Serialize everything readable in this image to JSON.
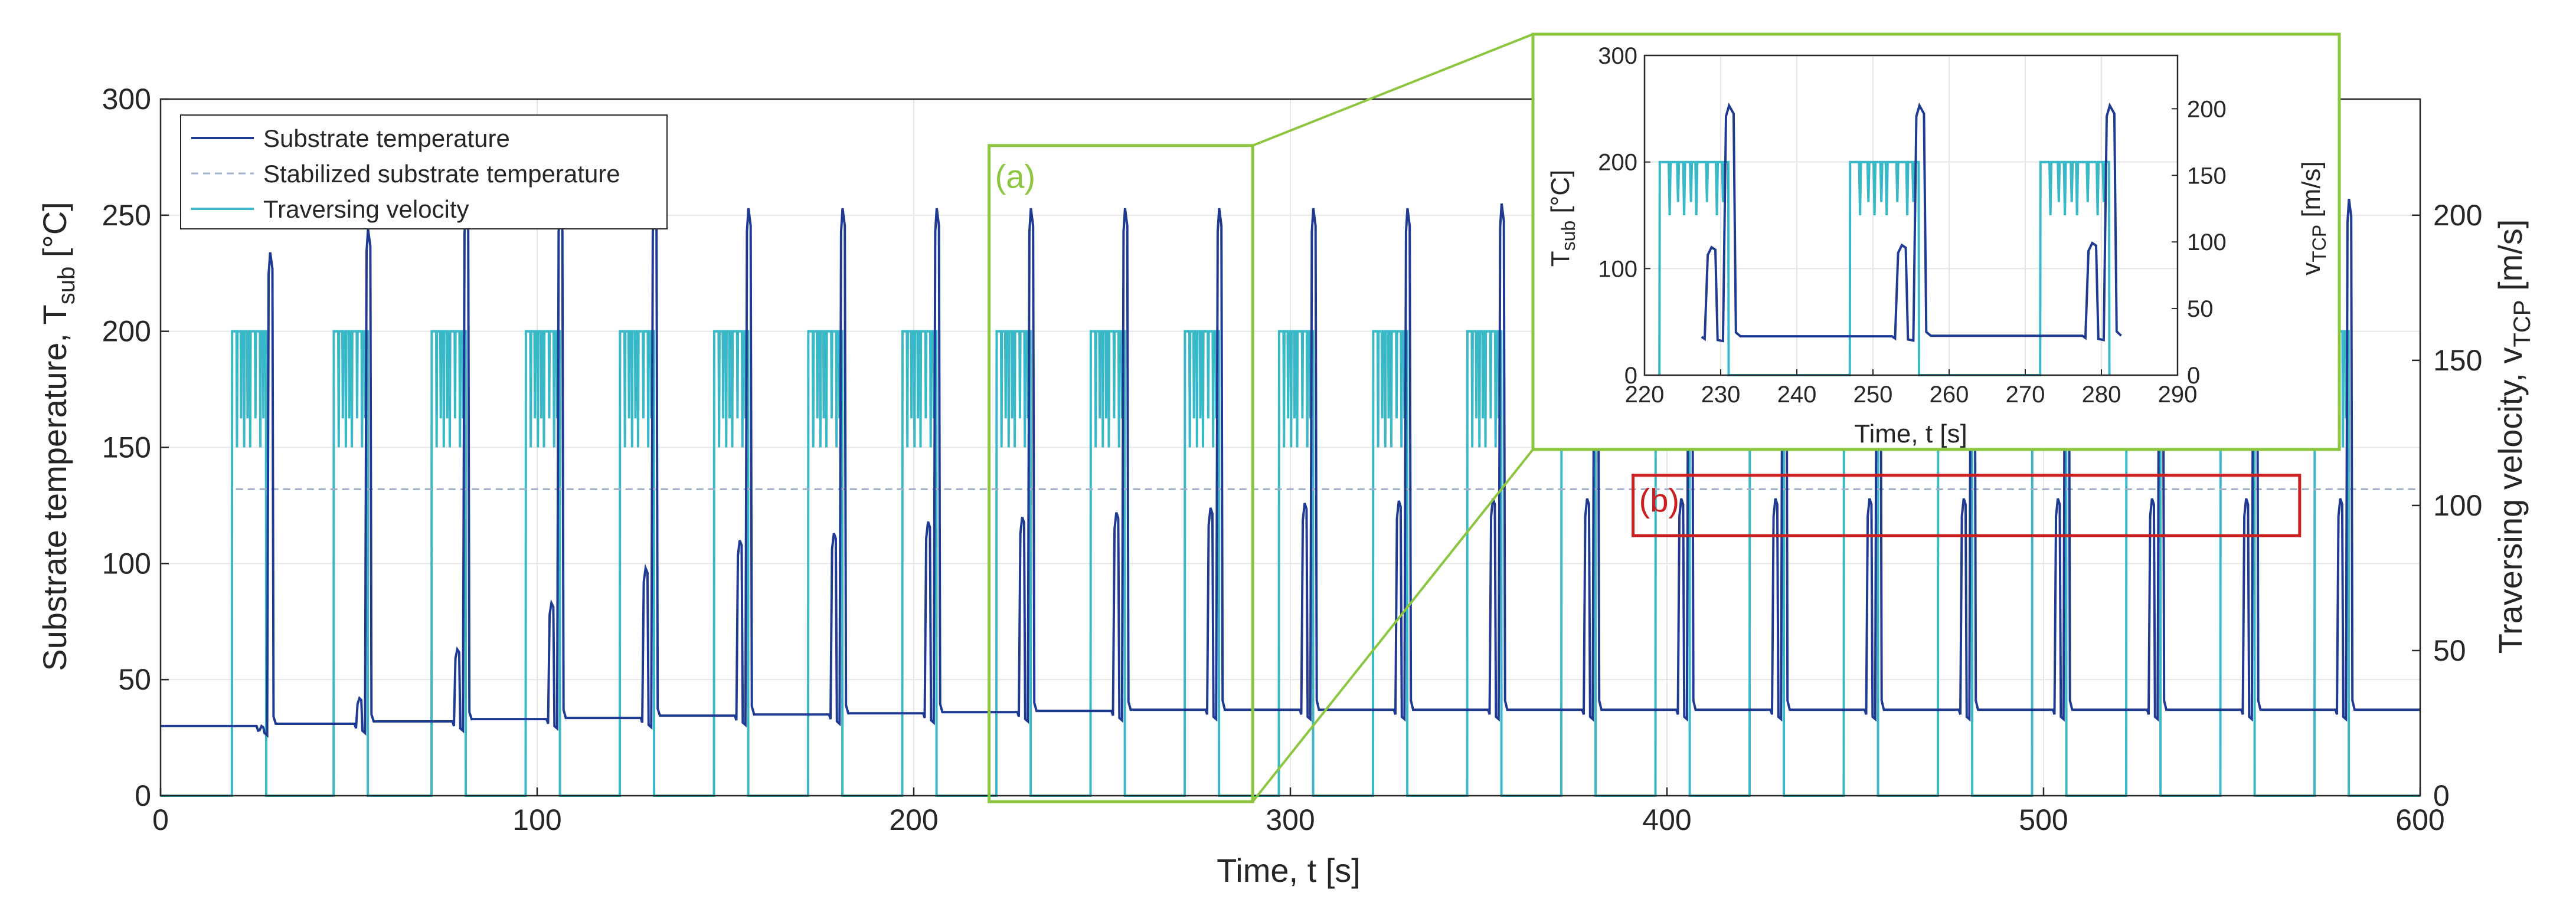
{
  "chart_data": {
    "type": "line",
    "main": {
      "x_label": "Time, t [s]",
      "y_left_label_main": "Substrate temperature, T",
      "y_left_label_sub": "sub",
      "y_left_label_tail": " [°C]",
      "y_right_label_main": "Traversing velocity, v",
      "y_right_label_sub": "TCP",
      "y_right_label_tail": " [m/s]",
      "xlim": [
        0,
        600
      ],
      "ylim_left": [
        0,
        300
      ],
      "ylim_right": [
        0,
        240
      ],
      "x_ticks": [
        "0",
        "100",
        "200",
        "300",
        "400",
        "500",
        "600"
      ],
      "y_left_ticks": [
        "0",
        "50",
        "100",
        "150",
        "200",
        "250",
        "300"
      ],
      "y_right_ticks": [
        "0",
        "50",
        "100",
        "150",
        "200"
      ],
      "grid": true,
      "legend_position": "top-left",
      "legend": [
        "Substrate temperature",
        "Stabilized substrate temperature",
        "Traversing velocity"
      ],
      "series": [
        {
          "name": "Substrate temperature",
          "axis": "left",
          "color": "#1f3a93",
          "cycle_start": [
            20,
            46,
            72,
            97,
            122,
            147,
            172,
            197,
            222,
            247,
            272,
            297,
            322,
            347,
            372,
            397,
            422,
            447,
            472,
            497,
            522,
            547,
            572
          ],
          "first_peak": [
            30,
            42,
            63,
            83,
            98,
            110,
            113,
            118,
            120,
            122,
            124,
            126,
            127,
            128,
            128,
            128,
            128,
            128,
            128,
            128,
            128,
            128,
            128
          ],
          "second_peak": [
            234,
            244,
            252,
            253,
            253,
            253,
            253,
            253,
            253,
            253,
            253,
            253,
            253,
            255,
            255,
            253,
            253,
            253,
            253,
            253,
            253,
            253,
            257
          ],
          "baseline": [
            30,
            31,
            32,
            33,
            33.5,
            34.5,
            35,
            35.5,
            36,
            36.5,
            37,
            37,
            37,
            37,
            37,
            37,
            37,
            37,
            37,
            37,
            37,
            37,
            37
          ]
        },
        {
          "name": "Stabilized substrate temperature",
          "axis": "left",
          "color": "#9fb0c8",
          "value": 132,
          "x_range": [
            20,
            600
          ]
        },
        {
          "name": "Traversing velocity",
          "axis": "right",
          "color": "#39b8c8",
          "plateau": 160,
          "dip": 120,
          "on_duration": 9,
          "first_cycle_on": [
            19,
            29
          ]
        }
      ]
    },
    "inset": {
      "x_label": "Time, t [s]",
      "y_left_label_main": "T",
      "y_left_label_sub": "sub",
      "y_left_label_tail": " [°C]",
      "y_right_label_main": "v",
      "y_right_label_sub": "TCP",
      "y_right_label_tail": " [m/s]",
      "xlim": [
        220,
        290
      ],
      "ylim_left": [
        0,
        300
      ],
      "ylim_right": [
        0,
        240
      ],
      "x_ticks": [
        "220",
        "230",
        "240",
        "250",
        "260",
        "270",
        "280",
        "290"
      ],
      "y_left_ticks": [
        "0",
        "100",
        "200",
        "300"
      ],
      "y_right_ticks": [
        "0",
        "50",
        "100",
        "150",
        "200"
      ]
    },
    "annotations": [
      {
        "label": "(a)",
        "color": "#8cc63f",
        "x_range": [
          220,
          290
        ],
        "y_range": [
          0,
          280
        ]
      },
      {
        "label": "(b)",
        "color": "#cc1f1f",
        "x_range": [
          391,
          568
        ],
        "y_range": [
          112,
          138
        ]
      }
    ]
  }
}
